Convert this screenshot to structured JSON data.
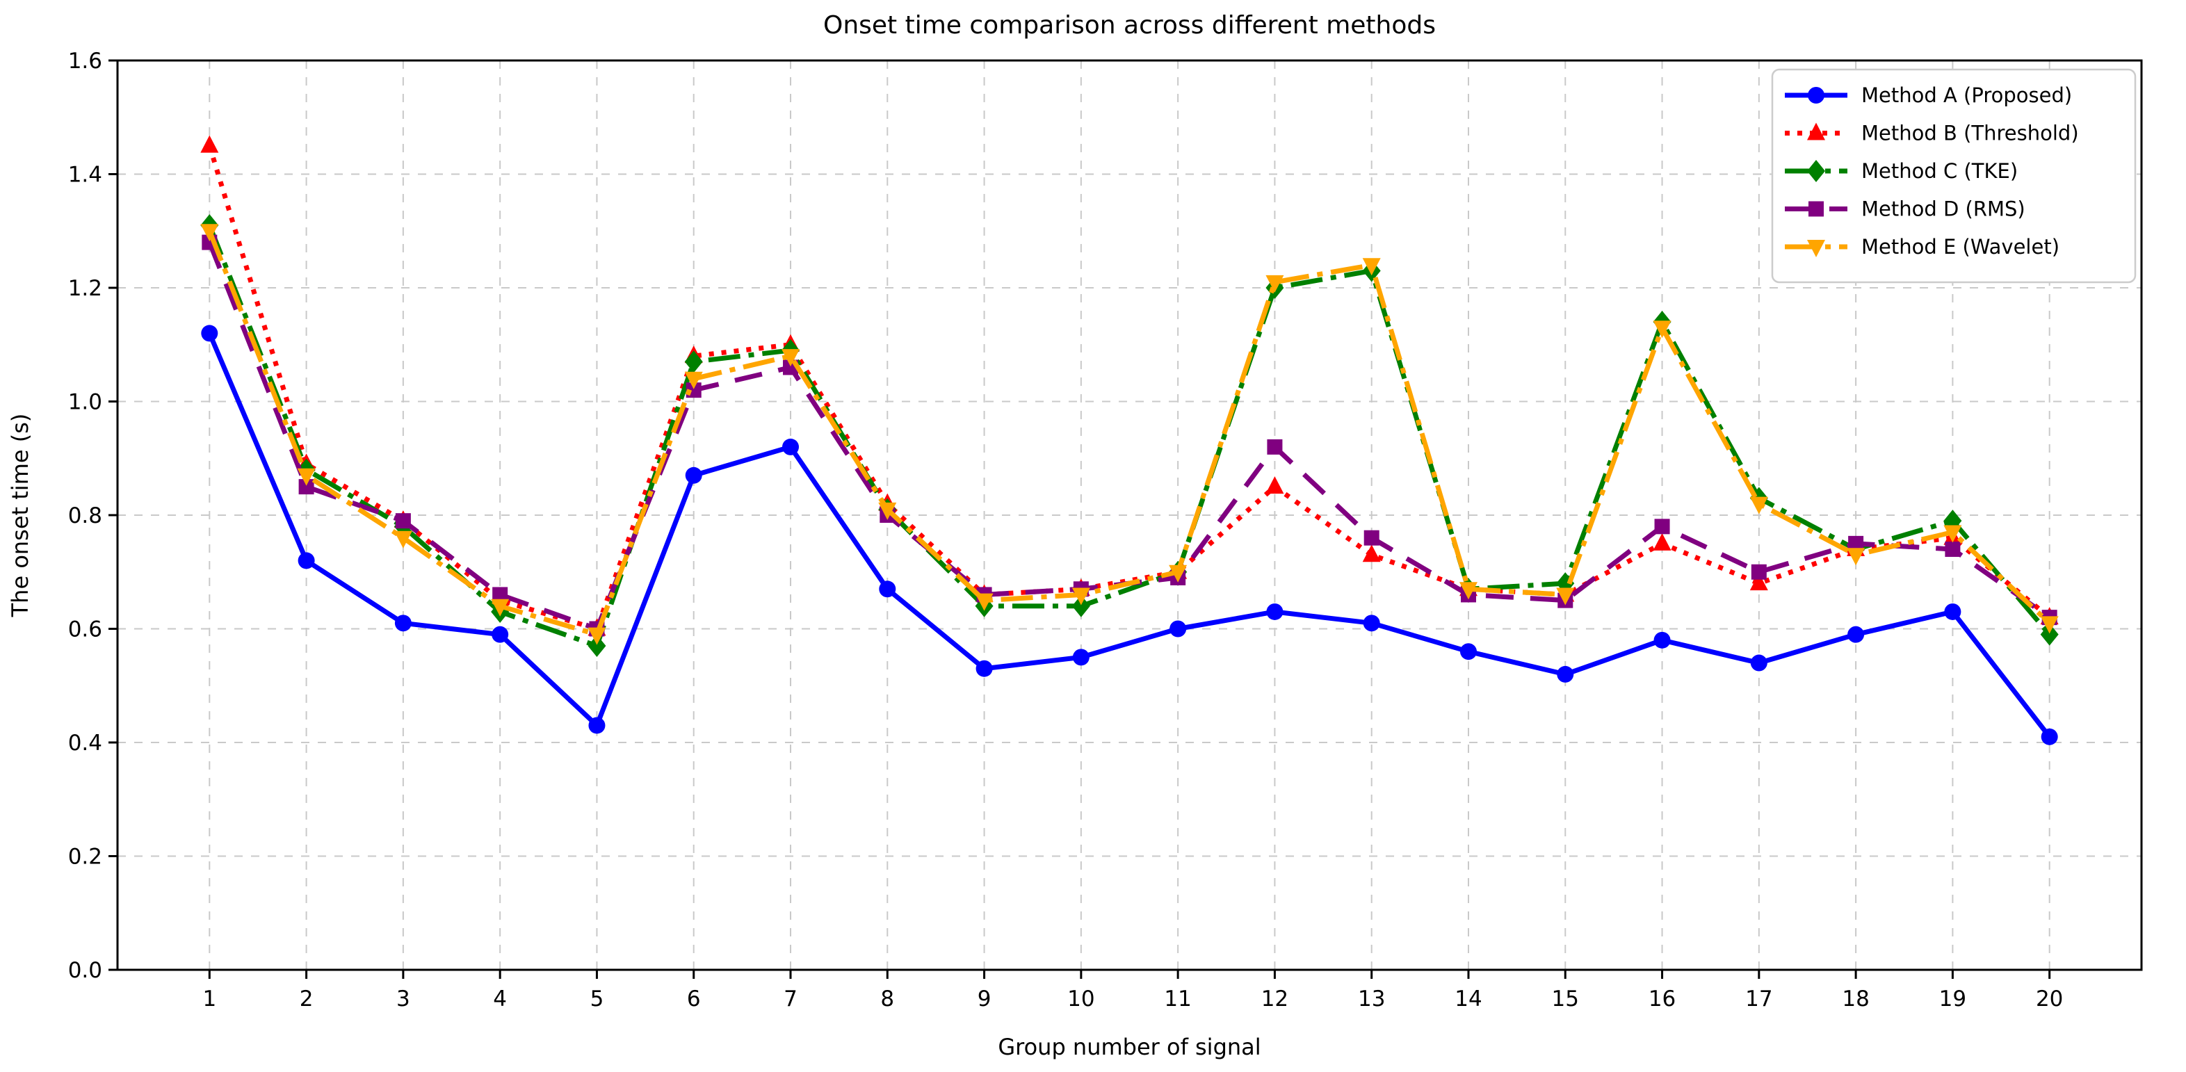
{
  "chart_data": {
    "type": "line",
    "title": "Onset time comparison across different methods",
    "xlabel": "Group number of signal",
    "ylabel": "The onset time (s)",
    "x": [
      1,
      2,
      3,
      4,
      5,
      6,
      7,
      8,
      9,
      10,
      11,
      12,
      13,
      14,
      15,
      16,
      17,
      18,
      19,
      20
    ],
    "xtick_labels": [
      "1",
      "2",
      "3",
      "4",
      "5",
      "6",
      "7",
      "8",
      "9",
      "10",
      "11",
      "12",
      "13",
      "14",
      "15",
      "16",
      "17",
      "18",
      "19",
      "20"
    ],
    "xlim": [
      0.05,
      20.95
    ],
    "ylim": [
      0.0,
      1.6
    ],
    "yticks": [
      0.0,
      0.2,
      0.4,
      0.6,
      0.8,
      1.0,
      1.2,
      1.4,
      1.6
    ],
    "grid": true,
    "grid_style": "dashed-lightgray",
    "legend_position": "upper right",
    "series": [
      {
        "name": "Method A (Proposed)",
        "color": "#0000FF",
        "line_style": "solid",
        "marker": "circle",
        "values": [
          1.12,
          0.72,
          0.61,
          0.59,
          0.43,
          0.87,
          0.92,
          0.67,
          0.53,
          0.55,
          0.6,
          0.63,
          0.61,
          0.56,
          0.52,
          0.58,
          0.54,
          0.59,
          0.63,
          0.41
        ]
      },
      {
        "name": "Method B (Threshold)",
        "color": "#FF0000",
        "line_style": "dotted",
        "marker": "triangle-up",
        "values": [
          1.45,
          0.89,
          0.79,
          0.65,
          0.6,
          1.08,
          1.1,
          0.82,
          0.66,
          0.67,
          0.7,
          0.85,
          0.73,
          0.67,
          0.66,
          0.75,
          0.68,
          0.74,
          0.76,
          0.62
        ]
      },
      {
        "name": "Method C (TKE)",
        "color": "#008000",
        "line_style": "dashdot",
        "marker": "diamond",
        "values": [
          1.31,
          0.88,
          0.78,
          0.63,
          0.57,
          1.07,
          1.09,
          0.81,
          0.64,
          0.64,
          0.7,
          1.2,
          1.23,
          0.67,
          0.68,
          1.14,
          0.83,
          0.74,
          0.79,
          0.59
        ]
      },
      {
        "name": "Method D (RMS)",
        "color": "#800080",
        "line_style": "dashed",
        "marker": "square",
        "values": [
          1.28,
          0.85,
          0.79,
          0.66,
          0.6,
          1.02,
          1.06,
          0.8,
          0.66,
          0.67,
          0.69,
          0.92,
          0.76,
          0.66,
          0.65,
          0.78,
          0.7,
          0.75,
          0.74,
          0.62
        ]
      },
      {
        "name": "Method E (Wavelet)",
        "color": "#FFA500",
        "line_style": "dashdot",
        "marker": "triangle-down",
        "values": [
          1.3,
          0.87,
          0.76,
          0.64,
          0.59,
          1.04,
          1.08,
          0.81,
          0.65,
          0.66,
          0.7,
          1.21,
          1.24,
          0.67,
          0.66,
          1.13,
          0.82,
          0.73,
          0.77,
          0.61
        ]
      }
    ],
    "colors": {
      "grid": "#c9c9c9",
      "spine": "#000000",
      "legend_border": "#cccccc",
      "background": "#ffffff"
    }
  }
}
